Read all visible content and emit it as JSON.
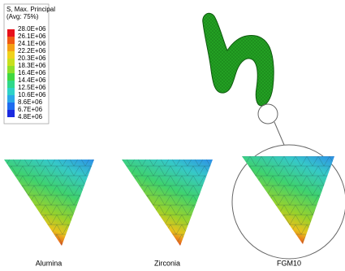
{
  "legend": {
    "title": "S, Max. Principal",
    "subtitle": "(Avg: 75%)",
    "labels": [
      "28.0E+06",
      "26.1E+06",
      "24.1E+06",
      "22.2E+06",
      "20.3E+06",
      "18.3E+06",
      "16.4E+06",
      "14.4E+06",
      "12.5E+06",
      "10.6E+06",
      "8.6E+06",
      "6.7E+06",
      "4.8E+06"
    ]
  },
  "captions": [
    "Alumina",
    "Zirconia",
    "FGM10"
  ]
}
